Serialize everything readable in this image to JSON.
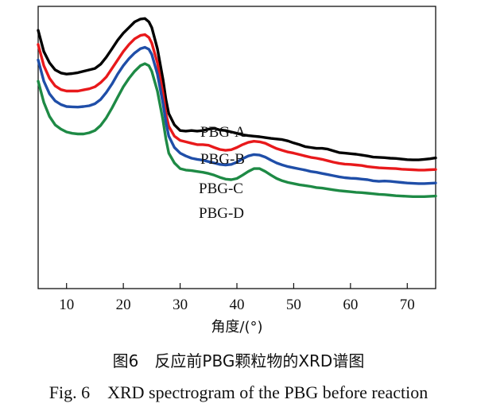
{
  "chart_data": {
    "type": "line",
    "xlabel": "角度/(°)",
    "ylabel": "",
    "xlim": [
      5,
      75
    ],
    "x_ticks": [
      10,
      20,
      30,
      40,
      50,
      60,
      70
    ],
    "grid": false,
    "legend": "inline-labels",
    "series": [
      {
        "name": "PBG-A",
        "color": "#000000",
        "points": [
          [
            5,
            0.915
          ],
          [
            6,
            0.84
          ],
          [
            7,
            0.8
          ],
          [
            8,
            0.775
          ],
          [
            9,
            0.764
          ],
          [
            10,
            0.76
          ],
          [
            11,
            0.762
          ],
          [
            12,
            0.765
          ],
          [
            13,
            0.77
          ],
          [
            14,
            0.775
          ],
          [
            15,
            0.78
          ],
          [
            16,
            0.795
          ],
          [
            17,
            0.82
          ],
          [
            18,
            0.85
          ],
          [
            19,
            0.88
          ],
          [
            20,
            0.905
          ],
          [
            21,
            0.925
          ],
          [
            22,
            0.945
          ],
          [
            23,
            0.955
          ],
          [
            23.8,
            0.957
          ],
          [
            24.5,
            0.945
          ],
          [
            25,
            0.925
          ],
          [
            26,
            0.85
          ],
          [
            27,
            0.74
          ],
          [
            27.5,
            0.67
          ],
          [
            28,
            0.62
          ],
          [
            29,
            0.58
          ],
          [
            30,
            0.56
          ],
          [
            31,
            0.558
          ],
          [
            32,
            0.56
          ],
          [
            33,
            0.558
          ],
          [
            34,
            0.56
          ],
          [
            35,
            0.565
          ],
          [
            36,
            0.568
          ],
          [
            37,
            0.562
          ],
          [
            38,
            0.56
          ],
          [
            39,
            0.555
          ],
          [
            40,
            0.55
          ],
          [
            41,
            0.545
          ],
          [
            42,
            0.542
          ],
          [
            43,
            0.54
          ],
          [
            44,
            0.538
          ],
          [
            45,
            0.535
          ],
          [
            46,
            0.532
          ],
          [
            47,
            0.53
          ],
          [
            48,
            0.528
          ],
          [
            49,
            0.523
          ],
          [
            50,
            0.516
          ],
          [
            51,
            0.51
          ],
          [
            52,
            0.503
          ],
          [
            53,
            0.5
          ],
          [
            54,
            0.497
          ],
          [
            55,
            0.497
          ],
          [
            56,
            0.494
          ],
          [
            57,
            0.488
          ],
          [
            58,
            0.482
          ],
          [
            59,
            0.48
          ],
          [
            60,
            0.478
          ],
          [
            61,
            0.476
          ],
          [
            62,
            0.473
          ],
          [
            63,
            0.47
          ],
          [
            64,
            0.466
          ],
          [
            65,
            0.465
          ],
          [
            66,
            0.464
          ],
          [
            67,
            0.462
          ],
          [
            68,
            0.461
          ],
          [
            69,
            0.459
          ],
          [
            70,
            0.457
          ],
          [
            71,
            0.456
          ],
          [
            72,
            0.456
          ],
          [
            73,
            0.458
          ],
          [
            74,
            0.46
          ],
          [
            75,
            0.463
          ]
        ]
      },
      {
        "name": "PBG-B",
        "color": "#e8191b",
        "points": [
          [
            5,
            0.865
          ],
          [
            6,
            0.79
          ],
          [
            7,
            0.745
          ],
          [
            8,
            0.718
          ],
          [
            9,
            0.705
          ],
          [
            10,
            0.7
          ],
          [
            11,
            0.7
          ],
          [
            12,
            0.7
          ],
          [
            13,
            0.704
          ],
          [
            14,
            0.708
          ],
          [
            15,
            0.715
          ],
          [
            16,
            0.73
          ],
          [
            17,
            0.75
          ],
          [
            18,
            0.78
          ],
          [
            19,
            0.81
          ],
          [
            20,
            0.84
          ],
          [
            21,
            0.865
          ],
          [
            22,
            0.885
          ],
          [
            23,
            0.897
          ],
          [
            23.8,
            0.9
          ],
          [
            24.5,
            0.89
          ],
          [
            25,
            0.87
          ],
          [
            26,
            0.8
          ],
          [
            27,
            0.69
          ],
          [
            27.5,
            0.62
          ],
          [
            28,
            0.575
          ],
          [
            29,
            0.54
          ],
          [
            30,
            0.525
          ],
          [
            31,
            0.52
          ],
          [
            32,
            0.515
          ],
          [
            33,
            0.51
          ],
          [
            34,
            0.51
          ],
          [
            35,
            0.508
          ],
          [
            36,
            0.5
          ],
          [
            37,
            0.493
          ],
          [
            38,
            0.49
          ],
          [
            39,
            0.492
          ],
          [
            40,
            0.5
          ],
          [
            41,
            0.51
          ],
          [
            42,
            0.518
          ],
          [
            43,
            0.522
          ],
          [
            44,
            0.52
          ],
          [
            45,
            0.515
          ],
          [
            46,
            0.505
          ],
          [
            47,
            0.496
          ],
          [
            48,
            0.49
          ],
          [
            49,
            0.484
          ],
          [
            50,
            0.48
          ],
          [
            51,
            0.475
          ],
          [
            52,
            0.47
          ],
          [
            53,
            0.465
          ],
          [
            54,
            0.462
          ],
          [
            55,
            0.458
          ],
          [
            56,
            0.453
          ],
          [
            57,
            0.448
          ],
          [
            58,
            0.444
          ],
          [
            59,
            0.441
          ],
          [
            60,
            0.44
          ],
          [
            61,
            0.438
          ],
          [
            62,
            0.436
          ],
          [
            63,
            0.432
          ],
          [
            64,
            0.43
          ],
          [
            65,
            0.428
          ],
          [
            66,
            0.427
          ],
          [
            67,
            0.426
          ],
          [
            68,
            0.425
          ],
          [
            69,
            0.423
          ],
          [
            70,
            0.422
          ],
          [
            71,
            0.421
          ],
          [
            72,
            0.42
          ],
          [
            73,
            0.42
          ],
          [
            74,
            0.421
          ],
          [
            75,
            0.422
          ]
        ]
      },
      {
        "name": "PBG-C",
        "color": "#1f4ea8",
        "points": [
          [
            5,
            0.81
          ],
          [
            6,
            0.735
          ],
          [
            7,
            0.69
          ],
          [
            8,
            0.665
          ],
          [
            9,
            0.652
          ],
          [
            10,
            0.645
          ],
          [
            11,
            0.644
          ],
          [
            12,
            0.643
          ],
          [
            13,
            0.645
          ],
          [
            14,
            0.648
          ],
          [
            15,
            0.655
          ],
          [
            16,
            0.67
          ],
          [
            17,
            0.695
          ],
          [
            18,
            0.725
          ],
          [
            19,
            0.76
          ],
          [
            20,
            0.79
          ],
          [
            21,
            0.815
          ],
          [
            22,
            0.835
          ],
          [
            23,
            0.85
          ],
          [
            23.8,
            0.855
          ],
          [
            24.5,
            0.848
          ],
          [
            25,
            0.83
          ],
          [
            26,
            0.76
          ],
          [
            27,
            0.655
          ],
          [
            27.5,
            0.59
          ],
          [
            28,
            0.54
          ],
          [
            29,
            0.5
          ],
          [
            30,
            0.48
          ],
          [
            31,
            0.47
          ],
          [
            32,
            0.462
          ],
          [
            33,
            0.458
          ],
          [
            34,
            0.455
          ],
          [
            35,
            0.45
          ],
          [
            36,
            0.445
          ],
          [
            37,
            0.44
          ],
          [
            38,
            0.438
          ],
          [
            39,
            0.44
          ],
          [
            40,
            0.448
          ],
          [
            41,
            0.46
          ],
          [
            42,
            0.47
          ],
          [
            43,
            0.475
          ],
          [
            44,
            0.473
          ],
          [
            45,
            0.466
          ],
          [
            46,
            0.455
          ],
          [
            47,
            0.445
          ],
          [
            48,
            0.438
          ],
          [
            49,
            0.432
          ],
          [
            50,
            0.428
          ],
          [
            51,
            0.424
          ],
          [
            52,
            0.42
          ],
          [
            53,
            0.415
          ],
          [
            54,
            0.412
          ],
          [
            55,
            0.408
          ],
          [
            56,
            0.404
          ],
          [
            57,
            0.4
          ],
          [
            58,
            0.396
          ],
          [
            59,
            0.393
          ],
          [
            60,
            0.391
          ],
          [
            61,
            0.39
          ],
          [
            62,
            0.388
          ],
          [
            63,
            0.386
          ],
          [
            64,
            0.382
          ],
          [
            65,
            0.38
          ],
          [
            66,
            0.381
          ],
          [
            67,
            0.38
          ],
          [
            68,
            0.378
          ],
          [
            69,
            0.376
          ],
          [
            70,
            0.374
          ],
          [
            71,
            0.373
          ],
          [
            72,
            0.372
          ],
          [
            73,
            0.372
          ],
          [
            74,
            0.373
          ],
          [
            75,
            0.374
          ]
        ]
      },
      {
        "name": "PBG-D",
        "color": "#1e8a45",
        "points": [
          [
            5,
            0.735
          ],
          [
            6,
            0.66
          ],
          [
            7,
            0.61
          ],
          [
            8,
            0.58
          ],
          [
            9,
            0.565
          ],
          [
            10,
            0.555
          ],
          [
            11,
            0.55
          ],
          [
            12,
            0.548
          ],
          [
            13,
            0.548
          ],
          [
            14,
            0.552
          ],
          [
            15,
            0.56
          ],
          [
            16,
            0.578
          ],
          [
            17,
            0.605
          ],
          [
            18,
            0.64
          ],
          [
            19,
            0.678
          ],
          [
            20,
            0.715
          ],
          [
            21,
            0.745
          ],
          [
            22,
            0.77
          ],
          [
            23,
            0.79
          ],
          [
            23.8,
            0.797
          ],
          [
            24.5,
            0.79
          ],
          [
            25,
            0.77
          ],
          [
            26,
            0.7
          ],
          [
            27,
            0.595
          ],
          [
            27.5,
            0.53
          ],
          [
            28,
            0.48
          ],
          [
            29,
            0.445
          ],
          [
            30,
            0.425
          ],
          [
            31,
            0.42
          ],
          [
            32,
            0.418
          ],
          [
            33,
            0.415
          ],
          [
            34,
            0.412
          ],
          [
            35,
            0.408
          ],
          [
            36,
            0.402
          ],
          [
            37,
            0.394
          ],
          [
            38,
            0.388
          ],
          [
            39,
            0.386
          ],
          [
            40,
            0.39
          ],
          [
            41,
            0.402
          ],
          [
            42,
            0.415
          ],
          [
            43,
            0.425
          ],
          [
            44,
            0.425
          ],
          [
            45,
            0.415
          ],
          [
            46,
            0.402
          ],
          [
            47,
            0.39
          ],
          [
            48,
            0.382
          ],
          [
            49,
            0.376
          ],
          [
            50,
            0.372
          ],
          [
            51,
            0.368
          ],
          [
            52,
            0.365
          ],
          [
            53,
            0.362
          ],
          [
            54,
            0.358
          ],
          [
            55,
            0.356
          ],
          [
            56,
            0.353
          ],
          [
            57,
            0.35
          ],
          [
            58,
            0.347
          ],
          [
            59,
            0.345
          ],
          [
            60,
            0.343
          ],
          [
            61,
            0.341
          ],
          [
            62,
            0.34
          ],
          [
            63,
            0.338
          ],
          [
            64,
            0.336
          ],
          [
            65,
            0.334
          ],
          [
            66,
            0.333
          ],
          [
            67,
            0.331
          ],
          [
            68,
            0.329
          ],
          [
            69,
            0.328
          ],
          [
            70,
            0.327
          ],
          [
            71,
            0.326
          ],
          [
            72,
            0.326
          ],
          [
            73,
            0.326
          ],
          [
            74,
            0.327
          ],
          [
            75,
            0.328
          ]
        ]
      }
    ]
  },
  "caption": {
    "zh": "图6　反应前PBG颗粒物的XRD谱图",
    "en": "Fig. 6　XRD spectrogram of the PBG before reaction"
  }
}
